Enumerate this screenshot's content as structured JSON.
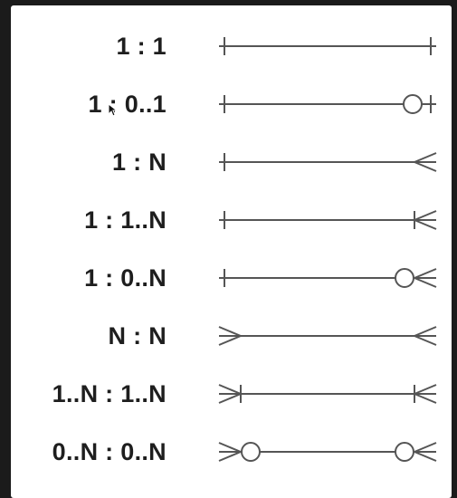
{
  "colors": {
    "line": "#555555",
    "text": "#1e1e1e",
    "circle_fill": "#ffffff"
  },
  "relationships": [
    {
      "label": "1 : 1",
      "left": "one",
      "right": "one"
    },
    {
      "label": "1 : 0..1",
      "left": "one",
      "right": "zero-or-one"
    },
    {
      "label": "1 : N",
      "left": "one",
      "right": "many"
    },
    {
      "label": "1 : 1..N",
      "left": "one",
      "right": "one-or-many"
    },
    {
      "label": "1 : 0..N",
      "left": "one",
      "right": "zero-or-many"
    },
    {
      "label": "N : N",
      "left": "many",
      "right": "many"
    },
    {
      "label": "1..N : 1..N",
      "left": "one-or-many",
      "right": "one-or-many"
    },
    {
      "label": "0..N : 0..N",
      "left": "zero-or-many",
      "right": "zero-or-many"
    }
  ]
}
